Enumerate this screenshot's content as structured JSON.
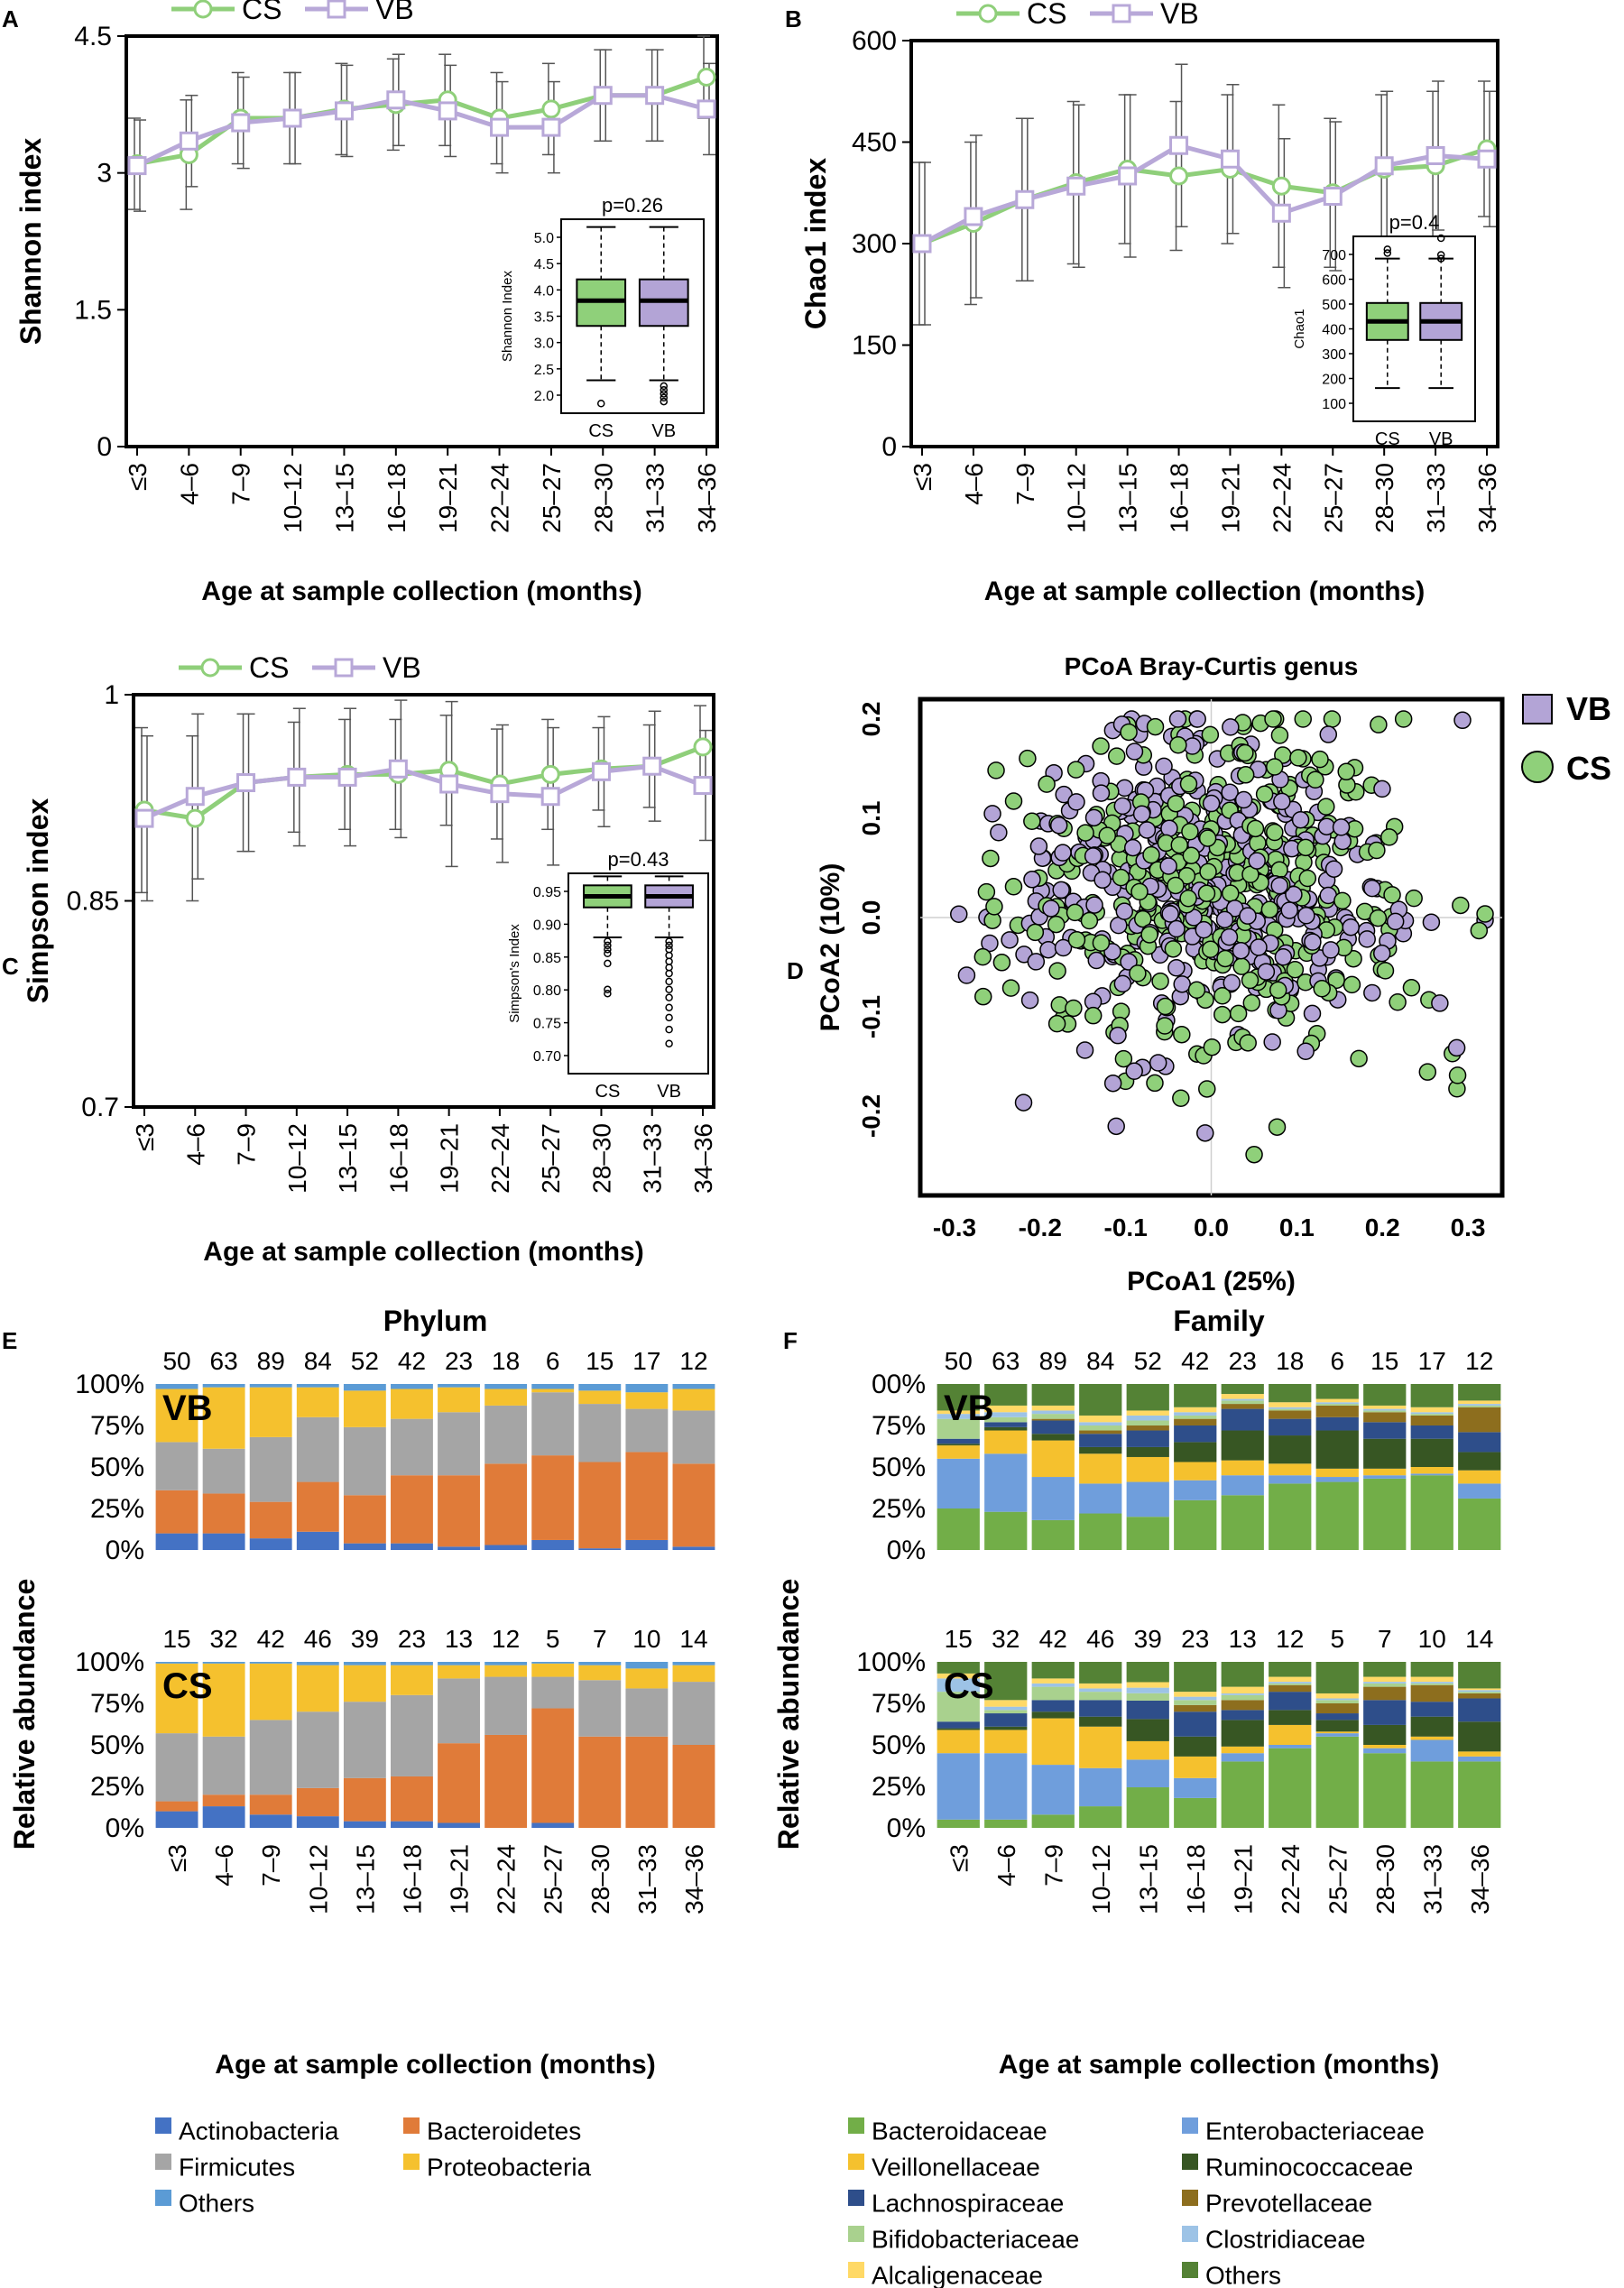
{
  "age_groups": [
    "≤3",
    "4–6",
    "7–9",
    "10–12",
    "13–15",
    "16–18",
    "19–21",
    "22–24",
    "25–27",
    "28–30",
    "31–33",
    "34–36"
  ],
  "xlabel": "Age at sample collection (months)",
  "colors": {
    "cs": "#8fcf7a",
    "vb": "#b8a8d8",
    "vb_fill": "#b3a4d6",
    "cs_fill": "#8fd07a",
    "err": "#555555"
  },
  "chart_data": [
    {
      "panel": "A",
      "type": "line",
      "ylabel": "Shannon index",
      "ylim": [
        0,
        4.5
      ],
      "yticks": [
        "0",
        "1.5",
        "3",
        "4.5"
      ],
      "legend": [
        "CS",
        "VB"
      ],
      "series": [
        {
          "name": "CS",
          "values": [
            3.1,
            3.2,
            3.6,
            3.6,
            3.7,
            3.75,
            3.8,
            3.6,
            3.7,
            3.85,
            3.85,
            4.05
          ],
          "err": [
            0.5,
            0.6,
            0.5,
            0.5,
            0.5,
            0.5,
            0.5,
            0.5,
            0.5,
            0.5,
            0.5,
            0.45
          ]
        },
        {
          "name": "VB",
          "values": [
            3.08,
            3.35,
            3.55,
            3.6,
            3.68,
            3.8,
            3.68,
            3.5,
            3.5,
            3.85,
            3.85,
            3.7
          ],
          "err": [
            0.5,
            0.5,
            0.5,
            0.5,
            0.5,
            0.5,
            0.5,
            0.5,
            0.5,
            0.5,
            0.5,
            0.5
          ]
        }
      ],
      "inset": {
        "p": "p=0.26",
        "ylabel": "Shannon Index",
        "yticks": [
          "2.0",
          "2.5",
          "3.0",
          "3.5",
          "4.0",
          "4.5",
          "5.0"
        ],
        "categories": [
          "CS",
          "VB"
        ]
      }
    },
    {
      "panel": "B",
      "type": "line",
      "ylabel": "Chao1 index",
      "ylim": [
        0,
        600
      ],
      "yticks": [
        "0",
        "150",
        "300",
        "450",
        "600"
      ],
      "legend": [
        "CS",
        "VB"
      ],
      "series": [
        {
          "name": "CS",
          "values": [
            300,
            330,
            365,
            390,
            410,
            400,
            410,
            385,
            375,
            410,
            415,
            440
          ],
          "err": [
            120,
            120,
            120,
            120,
            110,
            110,
            110,
            120,
            110,
            110,
            110,
            100
          ]
        },
        {
          "name": "VB",
          "values": [
            300,
            340,
            365,
            385,
            400,
            445,
            425,
            345,
            370,
            415,
            430,
            425
          ],
          "err": [
            120,
            120,
            120,
            120,
            120,
            120,
            110,
            110,
            110,
            110,
            110,
            100
          ]
        }
      ],
      "inset": {
        "p": "p=0.4",
        "ylabel": "Chao1",
        "yticks": [
          "100",
          "200",
          "300",
          "400",
          "500",
          "600",
          "700"
        ],
        "categories": [
          "CS",
          "VB"
        ]
      }
    },
    {
      "panel": "C",
      "type": "line",
      "ylabel": "Simpson index",
      "ylim": [
        0.7,
        1.0
      ],
      "yticks": [
        "0.7",
        "0.85",
        "1"
      ],
      "legend": [
        "CS",
        "VB"
      ],
      "series": [
        {
          "name": "CS",
          "values": [
            0.916,
            0.91,
            0.936,
            0.94,
            0.942,
            0.942,
            0.945,
            0.935,
            0.942,
            0.946,
            0.948,
            0.962
          ],
          "err": [
            0.06,
            0.06,
            0.05,
            0.04,
            0.04,
            0.04,
            0.04,
            0.04,
            0.04,
            0.03,
            0.03,
            0.03
          ]
        },
        {
          "name": "VB",
          "values": [
            0.91,
            0.926,
            0.936,
            0.94,
            0.94,
            0.946,
            0.935,
            0.928,
            0.926,
            0.944,
            0.948,
            0.934
          ],
          "err": [
            0.06,
            0.06,
            0.05,
            0.05,
            0.05,
            0.05,
            0.06,
            0.05,
            0.05,
            0.04,
            0.04,
            0.04
          ]
        }
      ],
      "inset": {
        "p": "p=0.43",
        "ylabel": "Simpson's Index",
        "yticks": [
          "0.70",
          "0.75",
          "0.80",
          "0.85",
          "0.90",
          "0.95"
        ],
        "categories": [
          "CS",
          "VB"
        ]
      }
    },
    {
      "panel": "D",
      "type": "scatter",
      "title": "PCoA Bray-Curtis genus",
      "xlabel": "PCoA1 (25%)",
      "ylabel": "PCoA2 (10%)",
      "xlim": [
        -0.34,
        0.34
      ],
      "ylim": [
        -0.28,
        0.22
      ],
      "xticks": [
        "-0.3",
        "-0.2",
        "-0.1",
        "0.0",
        "0.1",
        "0.2",
        "0.3"
      ],
      "yticks": [
        "-0.2",
        "-0.1",
        "0.0",
        "0.1",
        "0.2"
      ],
      "legend": [
        "VB",
        "CS"
      ],
      "note": "approximately 780 samples; points concentrated around (0, 0.03)",
      "n_points": 780
    },
    {
      "panel": "E",
      "type": "bar",
      "stacked": true,
      "title": "Phylum",
      "ylabel": "Relative abundance",
      "yticks": [
        "0%",
        "25%",
        "50%",
        "75%",
        "100%"
      ],
      "legend": [
        "Actinobacteria",
        "Bacteroidetes",
        "Firmicutes",
        "Proteobacteria",
        "Others"
      ],
      "legend_colors": [
        "#4472c4",
        "#e07b39",
        "#a5a5a5",
        "#f5c12e",
        "#5b9bd5"
      ],
      "groups": [
        {
          "label": "VB",
          "n": [
            "50",
            "63",
            "89",
            "84",
            "52",
            "42",
            "23",
            "18",
            "6",
            "15",
            "17",
            "12"
          ],
          "values": [
            [
              10,
              26,
              29,
              32,
              3
            ],
            [
              10,
              24,
              27,
              37,
              2
            ],
            [
              7,
              22,
              39,
              30,
              2
            ],
            [
              11,
              30,
              39,
              18,
              2
            ],
            [
              4,
              29,
              41,
              22,
              4
            ],
            [
              4,
              41,
              34,
              18,
              3
            ],
            [
              2,
              43,
              38,
              15,
              2
            ],
            [
              3,
              49,
              35,
              10,
              3
            ],
            [
              6,
              51,
              38,
              2,
              3
            ],
            [
              1,
              52,
              35,
              8,
              4
            ],
            [
              6,
              53,
              26,
              10,
              5
            ],
            [
              2,
              50,
              32,
              13,
              3
            ]
          ]
        },
        {
          "label": "CS",
          "n": [
            "15",
            "32",
            "42",
            "46",
            "39",
            "23",
            "13",
            "12",
            "5",
            "7",
            "10",
            "14"
          ],
          "values": [
            [
              10,
              6,
              41,
              42,
              1
            ],
            [
              13,
              7,
              35,
              44,
              1
            ],
            [
              8,
              12,
              45,
              34,
              1
            ],
            [
              7,
              17,
              46,
              28,
              2
            ],
            [
              4,
              26,
              46,
              22,
              2
            ],
            [
              4,
              27,
              49,
              18,
              2
            ],
            [
              3,
              48,
              39,
              8,
              2
            ],
            [
              0,
              56,
              35,
              7,
              2
            ],
            [
              3,
              69,
              19,
              8,
              1
            ],
            [
              0,
              55,
              34,
              9,
              2
            ],
            [
              0,
              55,
              29,
              12,
              4
            ],
            [
              0,
              50,
              38,
              10,
              2
            ]
          ]
        }
      ]
    },
    {
      "panel": "F",
      "type": "bar",
      "stacked": true,
      "title": "Family",
      "ylabel": "Relative abundance",
      "yticks": [
        "0%",
        "25%",
        "50%",
        "75%",
        "100%"
      ],
      "yticks_top": [
        "0%",
        "25%",
        "50%",
        "75%",
        "00%"
      ],
      "legend": [
        "Bacteroidaceae",
        "Enterobacteriaceae",
        "Veillonellaceae",
        "Ruminococcaceae",
        "Lachnospiraceae",
        "Prevotellaceae",
        "Bifidobacteriaceae",
        "Clostridiaceae",
        "Alcaligenaceae",
        "Others"
      ],
      "legend_colors": [
        "#72ae48",
        "#6f9edc",
        "#f5c12e",
        "#375623",
        "#2e4e8a",
        "#8d6e1e",
        "#a9d18e",
        "#9dc3e6",
        "#ffd966",
        "#548235"
      ],
      "groups": [
        {
          "label": "VB",
          "n": [
            "50",
            "63",
            "89",
            "84",
            "52",
            "42",
            "23",
            "18",
            "6",
            "15",
            "17",
            "12"
          ],
          "values": [
            [
              25,
              30,
              8,
              1,
              3,
              0,
              12,
              3,
              2,
              16
            ],
            [
              23,
              35,
              14,
              2,
              3,
              0,
              3,
              3,
              4,
              13
            ],
            [
              18,
              26,
              22,
              4,
              8,
              1,
              3,
              2,
              3,
              13
            ],
            [
              22,
              18,
              18,
              4,
              8,
              2,
              3,
              2,
              4,
              19
            ],
            [
              20,
              21,
              15,
              6,
              10,
              3,
              3,
              3,
              3,
              16
            ],
            [
              30,
              12,
              11,
              12,
              10,
              4,
              2,
              2,
              3,
              14
            ],
            [
              33,
              12,
              9,
              18,
              13,
              3,
              2,
              1,
              3,
              6
            ],
            [
              40,
              5,
              7,
              17,
              10,
              5,
              1,
              1,
              3,
              11
            ],
            [
              41,
              3,
              5,
              23,
              8,
              7,
              1,
              1,
              2,
              9
            ],
            [
              43,
              2,
              4,
              18,
              10,
              6,
              1,
              1,
              2,
              13
            ],
            [
              45,
              1,
              4,
              17,
              8,
              6,
              1,
              1,
              3,
              14
            ],
            [
              31,
              9,
              8,
              11,
              12,
              15,
              1,
              1,
              2,
              10
            ]
          ]
        },
        {
          "label": "CS",
          "n": [
            "15",
            "32",
            "42",
            "46",
            "39",
            "23",
            "13",
            "12",
            "5",
            "7",
            "10",
            "14"
          ],
          "values": [
            [
              5,
              40,
              14,
              1,
              4,
              0,
              18,
              8,
              3,
              7
            ],
            [
              5,
              40,
              14,
              2,
              8,
              0,
              2,
              2,
              4,
              23
            ],
            [
              8,
              30,
              28,
              4,
              7,
              0,
              8,
              2,
              3,
              10
            ],
            [
              13,
              23,
              25,
              6,
              10,
              0,
              5,
              2,
              3,
              13
            ],
            [
              22,
              15,
              10,
              12,
              10,
              0,
              4,
              3,
              3,
              11
            ],
            [
              18,
              12,
              13,
              12,
              15,
              4,
              3,
              2,
              3,
              18
            ],
            [
              40,
              5,
              4,
              16,
              6,
              6,
              3,
              1,
              4,
              15
            ],
            [
              48,
              2,
              12,
              9,
              11,
              4,
              1,
              1,
              3,
              9
            ],
            [
              55,
              2,
              1,
              7,
              4,
              6,
              2,
              1,
              3,
              19
            ],
            [
              45,
              3,
              2,
              12,
              15,
              8,
              2,
              1,
              3,
              9
            ],
            [
              40,
              13,
              2,
              12,
              9,
              10,
              1,
              1,
              3,
              9
            ],
            [
              40,
              3,
              3,
              18,
              14,
              3,
              1,
              1,
              1,
              16
            ]
          ]
        }
      ]
    }
  ]
}
